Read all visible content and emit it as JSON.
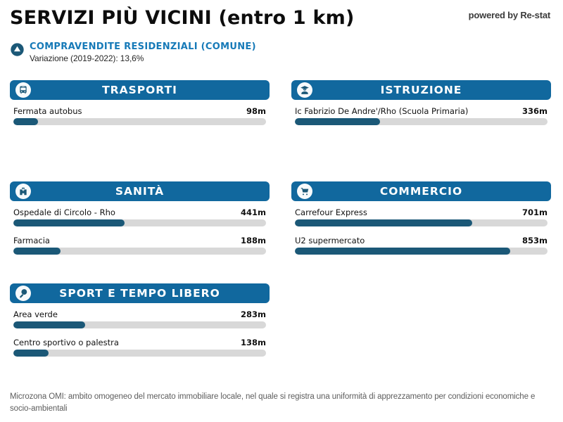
{
  "header": {
    "title": "SERVIZI PIÙ VICINI (entro 1 km)",
    "powered_by": "powered by Re-stat"
  },
  "summary": {
    "icon": "up-arrow-circle-icon",
    "title": "COMPRAVENDITE RESIDENZIALI (COMUNE)",
    "subtitle": "Variazione (2019-2022): 13,6%"
  },
  "colors": {
    "header_blue": "#11689e",
    "bar_fill": "#1b5877",
    "bar_track": "#d8d8d8",
    "accent_blue": "#177ab8"
  },
  "max_distance_m": 1000,
  "panels": [
    {
      "id": "trasporti",
      "title": "TRASPORTI",
      "icon": "bus-icon",
      "col": 0,
      "row": 0,
      "items": [
        {
          "label": "Fermata autobus",
          "distance_m": 98,
          "distance_label": "98m"
        }
      ]
    },
    {
      "id": "istruzione",
      "title": "ISTRUZIONE",
      "icon": "student-icon",
      "col": 1,
      "row": 0,
      "items": [
        {
          "label": "Ic Fabrizio De Andre'/Rho (Scuola Primaria)",
          "distance_m": 336,
          "distance_label": "336m"
        }
      ]
    },
    {
      "id": "sanita",
      "title": "SANITÀ",
      "icon": "hospital-icon",
      "col": 0,
      "row": 1,
      "items": [
        {
          "label": "Ospedale di Circolo - Rho",
          "distance_m": 441,
          "distance_label": "441m"
        },
        {
          "label": "Farmacia",
          "distance_m": 188,
          "distance_label": "188m"
        }
      ]
    },
    {
      "id": "commercio",
      "title": "COMMERCIO",
      "icon": "cart-icon",
      "col": 1,
      "row": 1,
      "items": [
        {
          "label": "Carrefour Express",
          "distance_m": 701,
          "distance_label": "701m"
        },
        {
          "label": "U2 supermercato",
          "distance_m": 853,
          "distance_label": "853m"
        }
      ]
    },
    {
      "id": "sport",
      "title": "SPORT E TEMPO LIBERO",
      "icon": "paddle-icon",
      "col": 0,
      "row": 2,
      "items": [
        {
          "label": "Area verde",
          "distance_m": 283,
          "distance_label": "283m"
        },
        {
          "label": "Centro sportivo o palestra",
          "distance_m": 138,
          "distance_label": "138m"
        }
      ]
    }
  ],
  "footer": {
    "text": "Microzona OMI: ambito omogeneo del mercato immobiliare locale, nel quale si registra una uniformità di apprezzamento per condizioni economiche e socio-ambientali"
  },
  "chart_data": {
    "type": "bar",
    "orientation": "horizontal",
    "title": "SERVIZI PIÙ VICINI (entro 1 km)",
    "unit": "m",
    "xlim": [
      0,
      1000
    ],
    "grid": false,
    "legend": false,
    "groups": [
      {
        "name": "TRASPORTI",
        "categories": [
          "Fermata autobus"
        ],
        "values": [
          98
        ]
      },
      {
        "name": "ISTRUZIONE",
        "categories": [
          "Ic Fabrizio De Andre'/Rho (Scuola Primaria)"
        ],
        "values": [
          336
        ]
      },
      {
        "name": "SANITÀ",
        "categories": [
          "Ospedale di Circolo - Rho",
          "Farmacia"
        ],
        "values": [
          441,
          188
        ]
      },
      {
        "name": "COMMERCIO",
        "categories": [
          "Carrefour Express",
          "U2 supermercato"
        ],
        "values": [
          701,
          853
        ]
      },
      {
        "name": "SPORT E TEMPO LIBERO",
        "categories": [
          "Area verde",
          "Centro sportivo o palestra"
        ],
        "values": [
          283,
          138
        ]
      }
    ]
  }
}
